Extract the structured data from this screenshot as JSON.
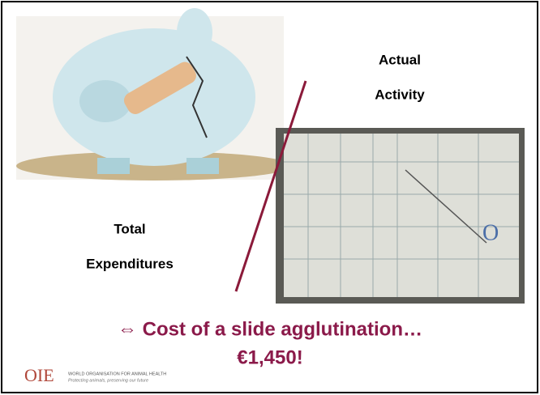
{
  "slide": {
    "top_right_label": [
      "Actual",
      "Activity"
    ],
    "left_label": [
      "Total",
      "Expenditures"
    ],
    "conclusion": [
      "⇔ Cost of a slide agglutination…",
      "€1,450!"
    ]
  },
  "footer": {
    "logo": "OIE",
    "organisation": "WORLD ORGANISATION FOR ANIMAL HEALTH",
    "motto": "Protecting animals, preserving our future"
  }
}
